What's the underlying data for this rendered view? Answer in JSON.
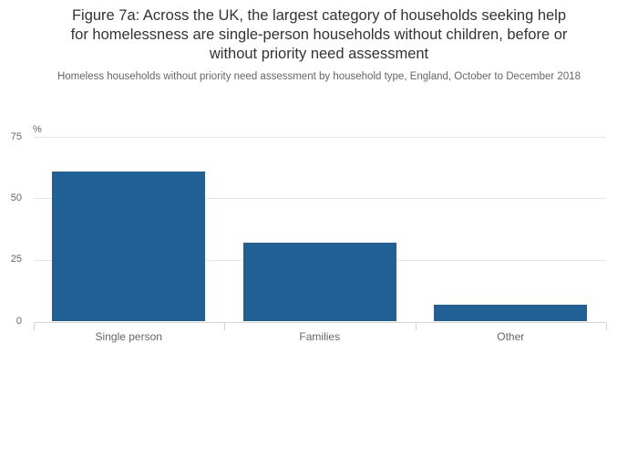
{
  "chart_data": {
    "type": "bar",
    "title": "Figure 7a: Across the UK, the largest category of households seeking help for homelessness are single-person households without children, before or without priority need assessment",
    "title_lines": [
      "Figure 7a: Across the UK, the largest category of households seeking help",
      "for homelessness are single-person households without children, before or",
      "without priority need assessment"
    ],
    "subtitle": "Homeless households without priority need assessment by household type, England, October to December 2018",
    "categories": [
      "Single person",
      "Families",
      "Other"
    ],
    "values": [
      61,
      32,
      7
    ],
    "unit_label": "%",
    "ylabel": "%",
    "xlabel": "",
    "yticks": [
      0,
      25,
      50,
      75
    ],
    "ylim": [
      0,
      75
    ],
    "grid": true,
    "legend_position": "none",
    "colors": {
      "bar": "#206095",
      "gridline": "#e6e6e6",
      "axis_line": "#ccd6eb",
      "tick_label": "#666666",
      "title_text": "#333333",
      "subtitle_text": "#666666"
    }
  }
}
